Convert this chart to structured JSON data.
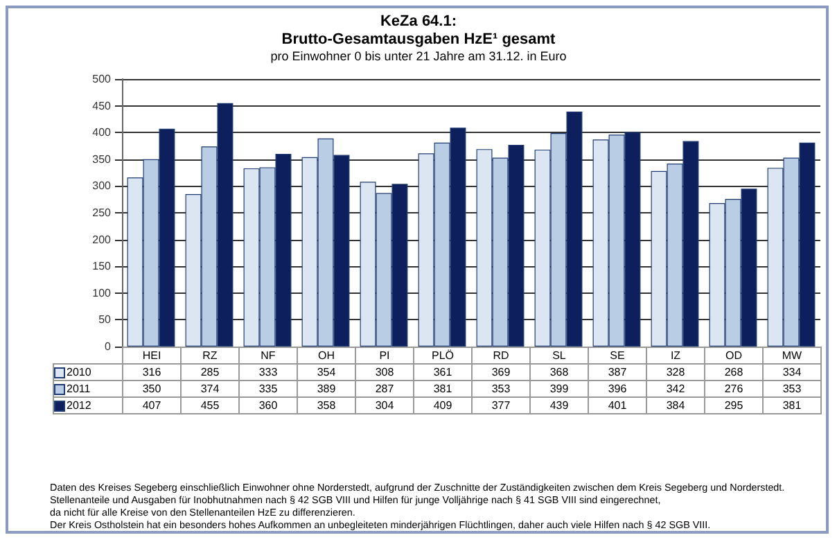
{
  "chart_data": {
    "type": "bar",
    "title": "KeZa 64.1:\nBrutto-Gesamtausgaben HzE¹ gesamt",
    "subtitle": "pro Einwohner 0 bis unter 21 Jahre am 31.12. in Euro",
    "categories": [
      "HEI",
      "RZ",
      "NF",
      "OH",
      "PI",
      "PLÖ",
      "RD",
      "SL",
      "SE",
      "IZ",
      "OD",
      "MW"
    ],
    "series": [
      {
        "name": "2010",
        "color": "#dce6f2",
        "values": [
          316,
          285,
          333,
          354,
          308,
          361,
          369,
          368,
          387,
          328,
          268,
          334
        ]
      },
      {
        "name": "2011",
        "color": "#b9cde5",
        "values": [
          350,
          374,
          335,
          389,
          287,
          381,
          353,
          399,
          396,
          342,
          276,
          353
        ]
      },
      {
        "name": "2012",
        "color": "#0d1f5c",
        "values": [
          407,
          455,
          360,
          358,
          304,
          409,
          377,
          439,
          401,
          384,
          295,
          381
        ]
      }
    ],
    "ylim": [
      0,
      500
    ],
    "yticks": [
      0,
      50,
      100,
      150,
      200,
      250,
      300,
      350,
      400,
      450,
      500
    ],
    "grid": "y",
    "legend": "bottom",
    "data_labels": true,
    "annotations": [
      "Daten des Kreises Segeberg einschließlich Einwohner ohne Norderstedt, aufgrund der Zuschnitte der Zuständigkeiten  zwischen dem Kreis Segeberg und Norderstedt.",
      "Stellenanteile und Ausgaben für Inobhutnahmen nach § 42 SGB VIII und Hilfen für junge Volljährige nach § 41 SGB VIII sind eingerechnet,",
      "da nicht für alle Kreise von den Stellenanteilen  HzE zu differenzieren.",
      "Der Kreis Ostholstein hat ein besonders hohes Aufkommen an unbegleiteten minderjährigen Flüchtlingen, daher auch viele Hilfen nach § 42 SGB VIII."
    ]
  }
}
